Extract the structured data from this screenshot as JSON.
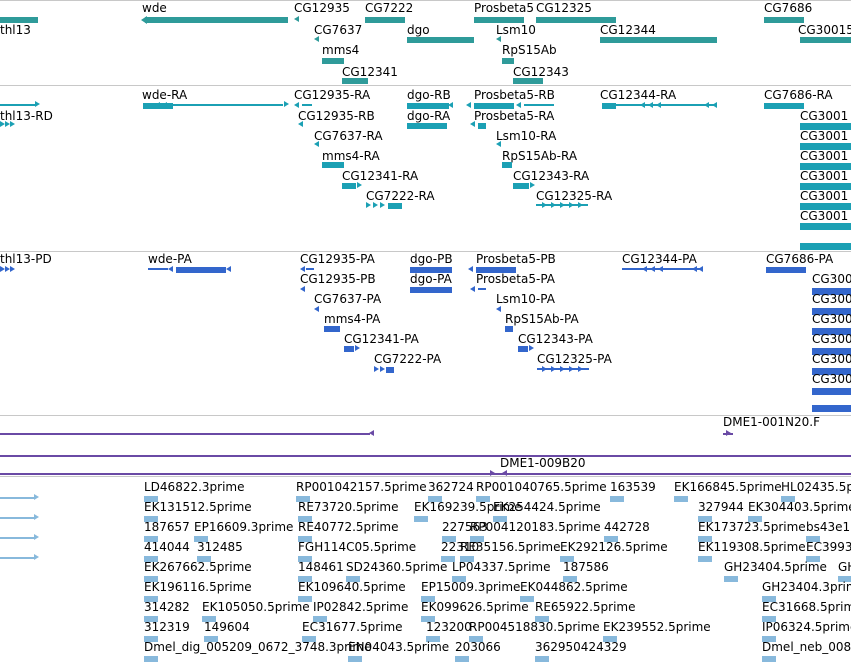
{
  "colors": {
    "gene": "#2f9b9a",
    "rna": "#1ba0b4",
    "protein": "#3366cc",
    "clone": "#6a4aa5",
    "est": "#88b9dc",
    "divider": "#c8c8c8"
  },
  "tracks": {
    "gene": {
      "labels": [
        "thl13",
        "wde",
        "CG12935",
        "CG7222",
        "Prosbeta5",
        "CG12325",
        "CG7686",
        "CG7637",
        "dgo",
        "Lsm10",
        "CG12344",
        "CG30015",
        "mms4",
        "RpS15Ab",
        "CG12341",
        "CG12343"
      ]
    },
    "rna": {
      "labels": [
        "wde-RA",
        "CG12935-RA",
        "dgo-RB",
        "Prosbeta5-RB",
        "CG12344-RA",
        "CG7686-RA",
        "thl13-RD",
        "CG12935-RB",
        "dgo-RA",
        "Prosbeta5-RA",
        "CG3001",
        "CG7637-RA",
        "Lsm10-RA",
        "CG3001",
        "mms4-RA",
        "RpS15Ab-RA",
        "CG3001",
        "CG12341-RA",
        "CG12343-RA",
        "CG3001",
        "CG7222-RA",
        "CG12325-RA",
        "CG3001",
        "CG3001"
      ]
    },
    "protein": {
      "labels": [
        "thl13-PD",
        "wde-PA",
        "CG12935-PA",
        "dgo-PB",
        "Prosbeta5-PB",
        "CG12344-PA",
        "CG7686-PA",
        "CG12935-PB",
        "dgo-PA",
        "Prosbeta5-PA",
        "CG300",
        "CG7637-PA",
        "Lsm10-PA",
        "CG300",
        "mms4-PA",
        "RpS15Ab-PA",
        "CG300",
        "CG12341-PA",
        "CG12343-PA",
        "CG300",
        "CG7222-PA",
        "CG12325-PA",
        "CG300",
        "CG300"
      ]
    },
    "clone": {
      "labels": [
        "DME1-001N20.F",
        "DME1-009B20"
      ]
    },
    "est": {
      "labels": [
        "LD46822.3prime",
        "RP001042157.5prime",
        "362724",
        "RP001040765.5prime",
        "163539",
        "EK166845.5prime",
        "HL02435.5p",
        "EK131512.5prime",
        "RE73720.5prime",
        "EK169239.5prime",
        "EK254424.5prime",
        "327944",
        "EK304403.5prime",
        "187657",
        "EP16609.3prime",
        "RE40772.5prime",
        "227563",
        "RP004120183.5prime",
        "442728",
        "EK173723.5prime",
        "bs43e1",
        "414044",
        "312485",
        "FGH114C05.5prime",
        "22310",
        "RE35156.5prime",
        "EK292126.5prime",
        "EK119308.5prime",
        "EC3993",
        "EK267662.5prime",
        "148461",
        "SD24360.5prime",
        "LP04337.5prime",
        "187586",
        "GH23404.5prime",
        "GH",
        "EK196116.5prime",
        "EK109640.5prime",
        "EP15009.3prime",
        "EK044862.5prime",
        "GH23404.3prime",
        "314282",
        "EK105050.5prime",
        "IP02842.5prime",
        "EK099626.5prime",
        "RE65922.5prime",
        "EC31668.5prime",
        "312319",
        "149604",
        "EC31677.5prime",
        "123200",
        "RP004518830.5prime",
        "EK239552.5prime",
        "IP06324.5prime",
        "Dmel_dig_005209_0672_3748.3prime",
        "EN04043.5prime",
        "203066",
        "362950424329",
        "Dmel_neb_008"
      ]
    }
  }
}
